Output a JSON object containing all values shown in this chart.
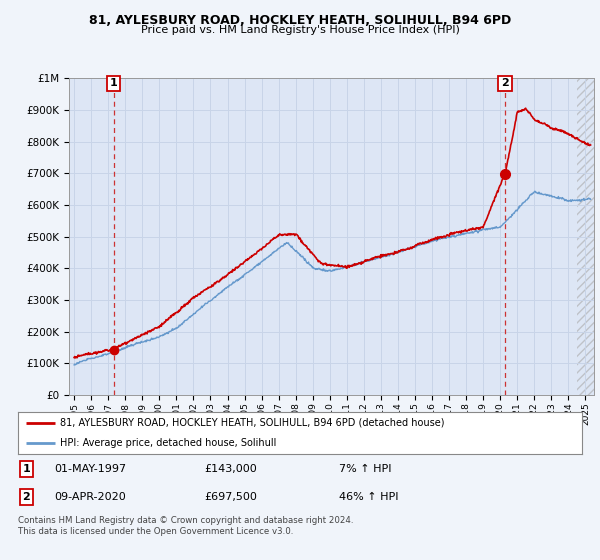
{
  "title": "81, AYLESBURY ROAD, HOCKLEY HEATH, SOLIHULL, B94 6PD",
  "subtitle": "Price paid vs. HM Land Registry's House Price Index (HPI)",
  "ylim": [
    0,
    1000000
  ],
  "xlim_start": 1994.7,
  "xlim_end": 2025.5,
  "background_color": "#f0f4fa",
  "plot_bg_color": "#dde6f5",
  "grid_color": "#c8d4e8",
  "transaction1_date": 1997.33,
  "transaction1_price": 143000,
  "transaction2_date": 2020.27,
  "transaction2_price": 697500,
  "legend_line1": "81, AYLESBURY ROAD, HOCKLEY HEATH, SOLIHULL, B94 6PD (detached house)",
  "legend_line2": "HPI: Average price, detached house, Solihull",
  "annotation1_date": "01-MAY-1997",
  "annotation1_price": "£143,000",
  "annotation1_pct": "7% ↑ HPI",
  "annotation2_date": "09-APR-2020",
  "annotation2_price": "£697,500",
  "annotation2_pct": "46% ↑ HPI",
  "footer": "Contains HM Land Registry data © Crown copyright and database right 2024.\nThis data is licensed under the Open Government Licence v3.0.",
  "red_line_color": "#cc0000",
  "blue_line_color": "#6699cc",
  "dashed_line_color": "#cc3333",
  "hatch_color": "#aaaaaa",
  "yticks": [
    0,
    100000,
    200000,
    300000,
    400000,
    500000,
    600000,
    700000,
    800000,
    900000,
    1000000
  ],
  "ytick_labels": [
    "£0",
    "£100K",
    "£200K",
    "£300K",
    "£400K",
    "£500K",
    "£600K",
    "£700K",
    "£800K",
    "£900K",
    "£1M"
  ],
  "hatch_start": 2024.5
}
